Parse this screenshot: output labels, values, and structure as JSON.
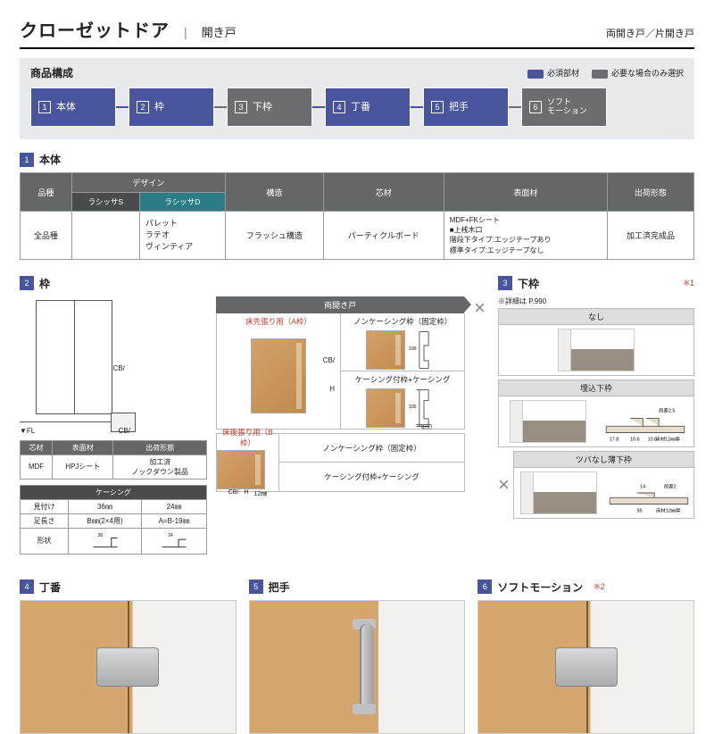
{
  "header": {
    "title": "クローゼットドア",
    "subtitle": "開き戸",
    "right": "両開き戸／片開き戸"
  },
  "composition": {
    "title": "商品構成",
    "legend": {
      "required": "必須部材",
      "optional": "必要な場合のみ選択"
    },
    "chips": [
      {
        "n": "1",
        "t": "本体",
        "c": "blue"
      },
      {
        "n": "2",
        "t": "枠",
        "c": "blue"
      },
      {
        "n": "3",
        "t": "下枠",
        "c": "gray"
      },
      {
        "n": "4",
        "t": "丁番",
        "c": "blue"
      },
      {
        "n": "5",
        "t": "把手",
        "c": "blue"
      },
      {
        "n": "6",
        "t": "ソフト\nモーション",
        "c": "gray"
      }
    ]
  },
  "sec1": {
    "label": "本体",
    "headers": [
      "品種",
      "デザイン",
      "構造",
      "芯材",
      "表面材",
      "出荷形態"
    ],
    "sub": {
      "a": "ラシッサS",
      "b": "ラシッサD"
    },
    "row": {
      "c1": "全品種",
      "c2a": "",
      "c2b": "パレット\nラテオ\nヴィンティア",
      "c3": "フラッシュ構造",
      "c4": "パーティクルボード",
      "c5": "MDF+FKシート\n■上桟木口\n階段下タイプ:エッジテープあり\n標準タイプ:エッジテープなし",
      "c6": "加工済完成品"
    }
  },
  "sec2": {
    "label": "枠"
  },
  "sec3": {
    "label": "下枠",
    "note": "※詳細は P.990",
    "star": "※1"
  },
  "doorDia": {
    "cb": "CB/",
    "cb2": "CB/",
    "fl": "▼FL"
  },
  "miniTable": {
    "h": [
      "芯材",
      "表面材",
      "出荷形態"
    ],
    "r1": [
      "MDF",
      "HPJシート",
      "加工済\nノックダウン製品"
    ],
    "h2": "ケーシング",
    "h3": [
      "見付け",
      "36㎜",
      "24㎜"
    ],
    "r2": [
      "足長さ",
      "B㎜(2×4用)",
      "A=B-19㎜"
    ],
    "r3lbl": "形状"
  },
  "centerTop": {
    "hdr": "両開き戸",
    "a": "床先張り用（A枠）",
    "b": "ノンケーシング枠（固定枠）",
    "c": "ケーシング付枠+ケーシング",
    "dimH": "H",
    "dimCB": "CB/",
    "dim100": "100",
    "mituke": "見付け"
  },
  "centerBot": {
    "a": "床後張り用（B枠）",
    "b": "ノンケーシング枠（固定枠）",
    "c": "ケーシング付枠+ケーシング",
    "dim12": "12㎜"
  },
  "shimowaku": {
    "s1": "なし",
    "s2": "埋込下枠",
    "s3": "ツバなし薄下枠",
    "d2": {
      "a": "段差2.5",
      "b": "10.6",
      "c": "10.6",
      "d": "17.8",
      "e": "床材12㎜厚"
    },
    "d3": {
      "a": "14",
      "b": "段差2",
      "c": "95",
      "d": "床材12㎜厚"
    }
  },
  "sec4": {
    "label": "丁番"
  },
  "sec5": {
    "label": "把手"
  },
  "sec6": {
    "label": "ソフトモーション",
    "star": "※2"
  },
  "x": "×",
  "colors": {
    "blue": "#48549c",
    "gray": "#6b6d70",
    "teal": "#2a7d86",
    "red": "#c0392b"
  }
}
